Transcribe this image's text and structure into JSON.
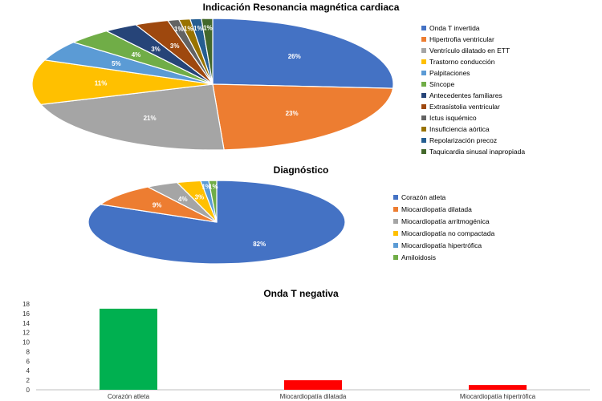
{
  "chart_data": [
    {
      "type": "pie",
      "title": "Indicación Resonancia magnética cardiaca",
      "legend_position": "right",
      "slices": [
        {
          "label": "Onda T invertida",
          "value": 26,
          "display": "26%",
          "color": "#4472C4"
        },
        {
          "label": "Hipertrofia ventricular",
          "value": 23,
          "display": "23%",
          "color": "#ED7D31"
        },
        {
          "label": "Ventrículo dilatado en ETT",
          "value": 21,
          "display": "21%",
          "color": "#A5A5A5"
        },
        {
          "label": "Trastorno conducción",
          "value": 11,
          "display": "11%",
          "color": "#FFC000"
        },
        {
          "label": "Palpitaciones",
          "value": 5,
          "display": "5%",
          "color": "#5B9BD5"
        },
        {
          "label": "Síncope",
          "value": 4,
          "display": "4%",
          "color": "#70AD47"
        },
        {
          "label": "Antecedentes familiares",
          "value": 3,
          "display": "3%",
          "color": "#264478"
        },
        {
          "label": "Extrasístolia ventricular",
          "value": 3,
          "display": "3%",
          "color": "#9E480E"
        },
        {
          "label": "Ictus isquémico",
          "value": 1,
          "display": "1%",
          "color": "#636363"
        },
        {
          "label": "Insuficiencia aórtica",
          "value": 1,
          "display": "1%",
          "color": "#997300"
        },
        {
          "label": "Repolarización precoz",
          "value": 1,
          "display": "1%",
          "color": "#255E91"
        },
        {
          "label": "Taquicardia sinusal inapropiada",
          "value": 1,
          "display": "1%",
          "color": "#43682B"
        }
      ]
    },
    {
      "type": "pie",
      "title": "Diagnóstico",
      "legend_position": "right",
      "slices": [
        {
          "label": "Corazón atleta",
          "value": 82,
          "display": "82%",
          "color": "#4472C4"
        },
        {
          "label": "Miocardiopatía dilatada",
          "value": 9,
          "display": "9%",
          "color": "#ED7D31"
        },
        {
          "label": "Miocardiopatía arritmogénica",
          "value": 4,
          "display": "4%",
          "color": "#A5A5A5"
        },
        {
          "label": "Miocardiopatía no compactada",
          "value": 3,
          "display": "3%",
          "color": "#FFC000"
        },
        {
          "label": "Miocardiopatía hipertrófica",
          "value": 1,
          "display": "1%",
          "color": "#5B9BD5"
        },
        {
          "label": "Amiloidosis",
          "value": 1,
          "display": "1%",
          "color": "#70AD47"
        }
      ]
    },
    {
      "type": "bar",
      "title": "Onda T negativa",
      "categories": [
        "Corazón atleta",
        "Miocardiopatía dilatada",
        "Miocardiopatía hipertrófica"
      ],
      "values": [
        17,
        2,
        1
      ],
      "colors": [
        "#00B050",
        "#FF0000",
        "#FF0000"
      ],
      "ylim": [
        0,
        18
      ],
      "yticks": [
        0,
        2,
        4,
        6,
        8,
        10,
        12,
        14,
        16,
        18
      ],
      "grid": false
    }
  ]
}
